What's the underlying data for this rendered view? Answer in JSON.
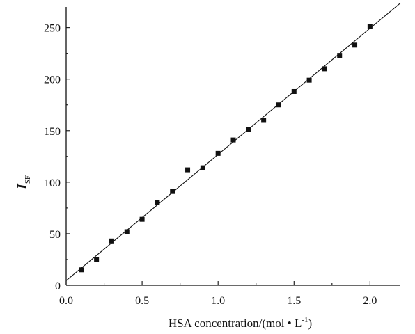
{
  "chart_data": {
    "type": "scatter",
    "title": "",
    "xlabel": {
      "main": "HSA  concentration/(mol • L",
      "superscript": "-1",
      "close": ")"
    },
    "ylabel": {
      "main": "I",
      "subscript": "SF"
    },
    "xlim": [
      0.0,
      2.2
    ],
    "ylim": [
      0,
      270
    ],
    "x_ticks": [
      "0.0",
      "0.5",
      "1.0",
      "1.5",
      "2.0"
    ],
    "y_ticks": [
      "0",
      "50",
      "100",
      "150",
      "200",
      "250"
    ],
    "grid": false,
    "series": [
      {
        "marker": "square",
        "color": "#111111",
        "points": [
          [
            0.1,
            15
          ],
          [
            0.2,
            25
          ],
          [
            0.3,
            43
          ],
          [
            0.4,
            52
          ],
          [
            0.5,
            64
          ],
          [
            0.6,
            80
          ],
          [
            0.7,
            91
          ],
          [
            0.8,
            112
          ],
          [
            0.9,
            114
          ],
          [
            1.0,
            128
          ],
          [
            1.1,
            141
          ],
          [
            1.2,
            151
          ],
          [
            1.3,
            160
          ],
          [
            1.4,
            175
          ],
          [
            1.5,
            188
          ],
          [
            1.6,
            199
          ],
          [
            1.7,
            210
          ],
          [
            1.8,
            223
          ],
          [
            1.9,
            233
          ],
          [
            2.0,
            251
          ]
        ]
      }
    ],
    "fit_line": {
      "slope": 122.4,
      "intercept": 4.5,
      "x_range": [
        0.0,
        2.2
      ]
    }
  }
}
